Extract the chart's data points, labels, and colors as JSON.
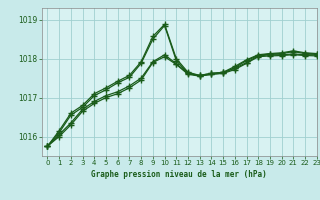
{
  "title": "Graphe pression niveau de la mer (hPa)",
  "background_color": "#c8eaea",
  "plot_bg_color": "#d8f2f2",
  "grid_color": "#a0d0d0",
  "line_color": "#1a5c1a",
  "label_color": "#1a5c1a",
  "bottom_bar_color": "#c8eaea",
  "ylim": [
    1015.5,
    1019.3
  ],
  "xlim": [
    -0.5,
    23
  ],
  "yticks": [
    1016,
    1017,
    1018,
    1019
  ],
  "xticks": [
    0,
    1,
    2,
    3,
    4,
    5,
    6,
    7,
    8,
    9,
    10,
    11,
    12,
    13,
    14,
    15,
    16,
    17,
    18,
    19,
    20,
    21,
    22,
    23
  ],
  "series": [
    [
      1015.75,
      1016.0,
      1016.3,
      1016.65,
      1016.85,
      1017.0,
      1017.1,
      1017.25,
      1017.45,
      1017.9,
      1018.05,
      1017.85,
      1017.6,
      1017.55,
      1017.6,
      1017.62,
      1017.72,
      1017.88,
      1018.05,
      1018.07,
      1018.08,
      1018.1,
      1018.08,
      1018.07
    ],
    [
      1015.75,
      1016.05,
      1016.35,
      1016.7,
      1016.9,
      1017.05,
      1017.15,
      1017.3,
      1017.5,
      1017.92,
      1018.1,
      1017.87,
      1017.62,
      1017.57,
      1017.62,
      1017.65,
      1017.75,
      1017.9,
      1018.07,
      1018.1,
      1018.1,
      1018.12,
      1018.1,
      1018.1
    ],
    [
      1015.75,
      1016.1,
      1016.55,
      1016.75,
      1017.05,
      1017.2,
      1017.38,
      1017.52,
      1017.88,
      1018.5,
      1018.85,
      1017.95,
      1017.62,
      1017.55,
      1017.6,
      1017.63,
      1017.77,
      1017.95,
      1018.08,
      1018.12,
      1018.13,
      1018.18,
      1018.13,
      1018.12
    ],
    [
      1015.75,
      1016.15,
      1016.6,
      1016.8,
      1017.1,
      1017.25,
      1017.42,
      1017.57,
      1017.92,
      1018.57,
      1018.88,
      1018.0,
      1017.65,
      1017.57,
      1017.62,
      1017.65,
      1017.8,
      1017.97,
      1018.1,
      1018.13,
      1018.15,
      1018.2,
      1018.15,
      1018.13
    ]
  ]
}
